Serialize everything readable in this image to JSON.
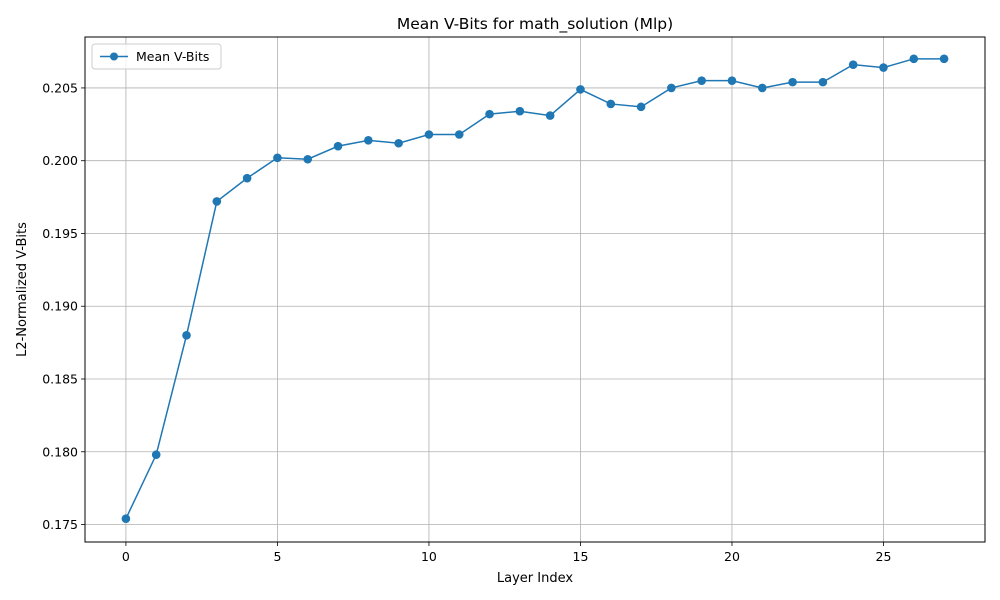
{
  "chart_data": {
    "type": "line",
    "title": "Mean V-Bits for math_solution (Mlp)",
    "xlabel": "Layer Index",
    "ylabel": "L2-Normalized V-Bits",
    "xlim": [
      -1.35,
      28.35
    ],
    "ylim": [
      0.1738,
      0.2085
    ],
    "xticks": [
      0,
      5,
      10,
      15,
      20,
      25
    ],
    "yticks": [
      0.175,
      0.18,
      0.185,
      0.19,
      0.195,
      0.2,
      0.205
    ],
    "ytick_labels": [
      "0.175",
      "0.180",
      "0.185",
      "0.190",
      "0.195",
      "0.200",
      "0.205"
    ],
    "grid": true,
    "legend": {
      "placement": "top-left"
    },
    "color": "#1f77b4",
    "series": [
      {
        "name": "Mean V-Bits",
        "x": [
          0,
          1,
          2,
          3,
          4,
          5,
          6,
          7,
          8,
          9,
          10,
          11,
          12,
          13,
          14,
          15,
          16,
          17,
          18,
          19,
          20,
          21,
          22,
          23,
          24,
          25,
          26,
          27
        ],
        "values": [
          0.1754,
          0.1798,
          0.188,
          0.1972,
          0.1988,
          0.2002,
          0.2001,
          0.201,
          0.2014,
          0.2012,
          0.2018,
          0.2018,
          0.2032,
          0.2034,
          0.2031,
          0.2049,
          0.2039,
          0.2037,
          0.205,
          0.2055,
          0.2055,
          0.205,
          0.2054,
          0.2054,
          0.2066,
          0.2064,
          0.207,
          0.207
        ]
      }
    ]
  }
}
